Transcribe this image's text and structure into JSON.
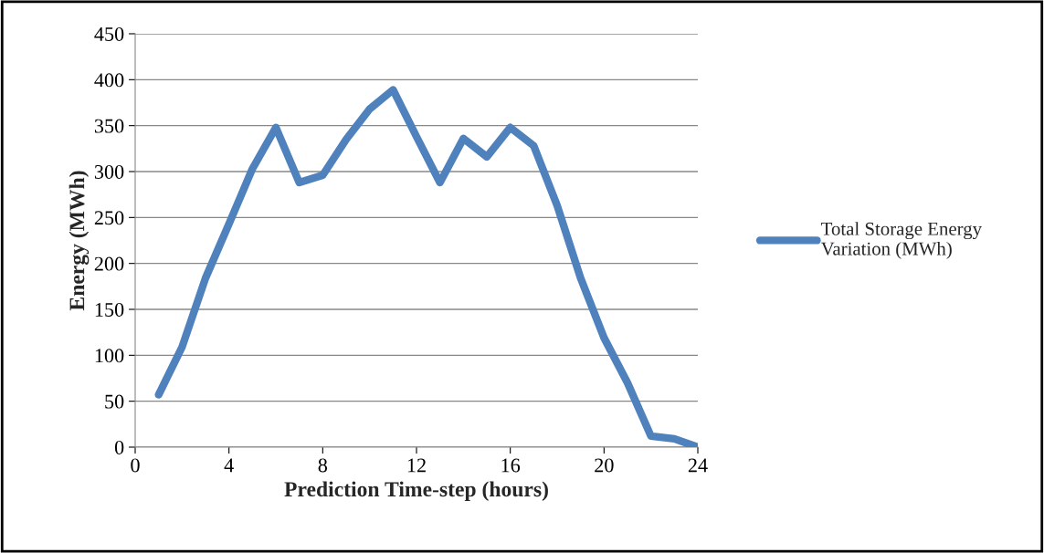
{
  "chart_data": {
    "type": "line",
    "xlabel": "Prediction Time-step (hours)",
    "ylabel": "Energy (MWh)",
    "x": [
      1,
      2,
      3,
      4,
      5,
      6,
      7,
      8,
      9,
      10,
      11,
      12,
      13,
      14,
      15,
      16,
      17,
      18,
      19,
      20,
      21,
      22,
      23,
      24
    ],
    "series": [
      {
        "name": "Total Storage Energy Variation (MWh)",
        "color": "#4f81bd",
        "values": [
          57,
          109,
          184,
          243,
          303,
          348,
          288,
          296,
          335,
          368,
          389,
          338,
          288,
          336,
          316,
          348,
          328,
          263,
          184,
          119,
          70,
          12,
          9,
          0
        ]
      }
    ],
    "xlim": [
      0,
      24
    ],
    "xticks": [
      0,
      4,
      8,
      12,
      16,
      20,
      24
    ],
    "ylim": [
      0,
      450
    ],
    "yticks": [
      0,
      50,
      100,
      150,
      200,
      250,
      300,
      350,
      400,
      450
    ],
    "grid": "y",
    "legend": "right",
    "marker": "none",
    "line_style": "solid"
  }
}
